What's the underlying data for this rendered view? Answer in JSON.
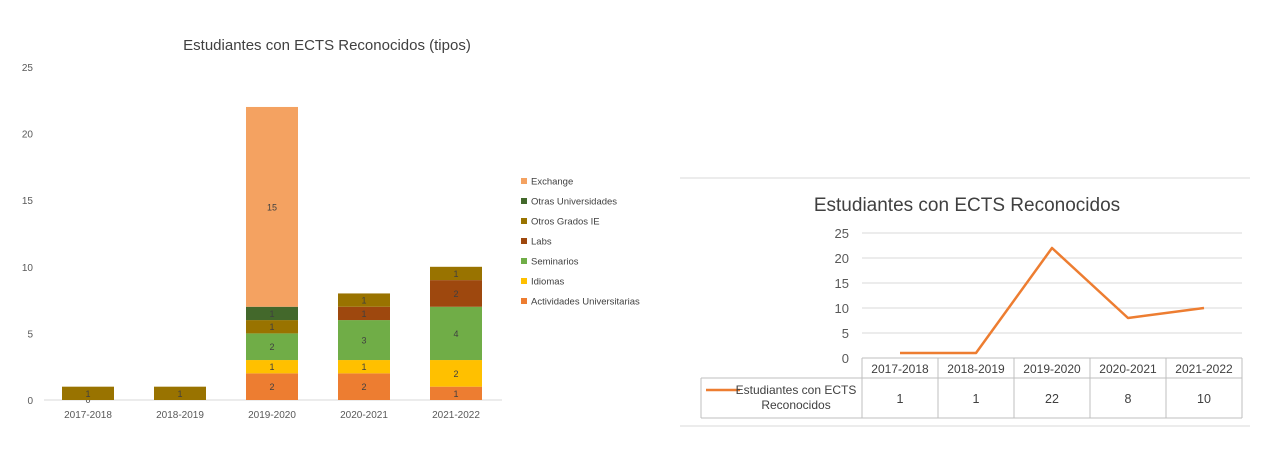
{
  "chart_data": [
    {
      "type": "bar",
      "stacked": true,
      "title": "Estudiantes con ECTS Reconocidos (tipos)",
      "xlabel": "",
      "ylabel": "",
      "ylim": [
        0,
        25
      ],
      "yticks": [
        "0",
        "5",
        "10",
        "15",
        "20",
        "25"
      ],
      "grid": false,
      "legend_position": "right",
      "categories": [
        "2017-2018",
        "2018-2019",
        "2019-2020",
        "2020-2021",
        "2021-2022"
      ],
      "series": [
        {
          "name": "Actividades Universitarias",
          "color": "#ED7D31",
          "values": [
            0,
            0,
            2,
            2,
            1
          ],
          "labels": [
            "0",
            "",
            "2",
            "2",
            "1"
          ]
        },
        {
          "name": "Idiomas",
          "color": "#FFC000",
          "values": [
            0,
            0,
            1,
            1,
            2
          ],
          "labels": [
            "",
            "",
            "1",
            "1",
            "2"
          ]
        },
        {
          "name": "Seminarios",
          "color": "#70AD47",
          "values": [
            0,
            0,
            2,
            3,
            4
          ],
          "labels": [
            "",
            "",
            "2",
            "3",
            "4"
          ]
        },
        {
          "name": "Labs",
          "color": "#9E480E",
          "values": [
            0,
            0,
            0,
            1,
            2
          ],
          "labels": [
            "",
            "",
            "",
            "1",
            "2"
          ]
        },
        {
          "name": "Otros Grados IE",
          "color": "#997300",
          "values": [
            1,
            1,
            1,
            1,
            1
          ],
          "labels": [
            "1",
            "1",
            "1",
            "1",
            "1"
          ]
        },
        {
          "name": "Otras Universidades",
          "color": "#43682B",
          "values": [
            0,
            0,
            1,
            0,
            0
          ],
          "labels": [
            "",
            "",
            "1",
            "",
            ""
          ]
        },
        {
          "name": "Exchange",
          "color": "#F4A261",
          "values": [
            0,
            0,
            15,
            0,
            0
          ],
          "labels": [
            "",
            "",
            "15",
            "",
            ""
          ]
        }
      ]
    },
    {
      "type": "line",
      "title": "Estudiantes con ECTS Reconocidos",
      "xlabel": "",
      "ylabel": "",
      "ylim": [
        0,
        25
      ],
      "yticks": [
        "0",
        "5",
        "10",
        "15",
        "20",
        "25"
      ],
      "grid": true,
      "data_table": true,
      "categories": [
        "2017-2018",
        "2018-2019",
        "2019-2020",
        "2020-2021",
        "2021-2022"
      ],
      "series": [
        {
          "name": "Estudiantes con ECTS Reconocidos",
          "name_lines": [
            "Estudiantes con ECTS",
            "Reconocidos"
          ],
          "color": "#ED7D31",
          "values": [
            1,
            1,
            22,
            8,
            10
          ]
        }
      ]
    }
  ]
}
